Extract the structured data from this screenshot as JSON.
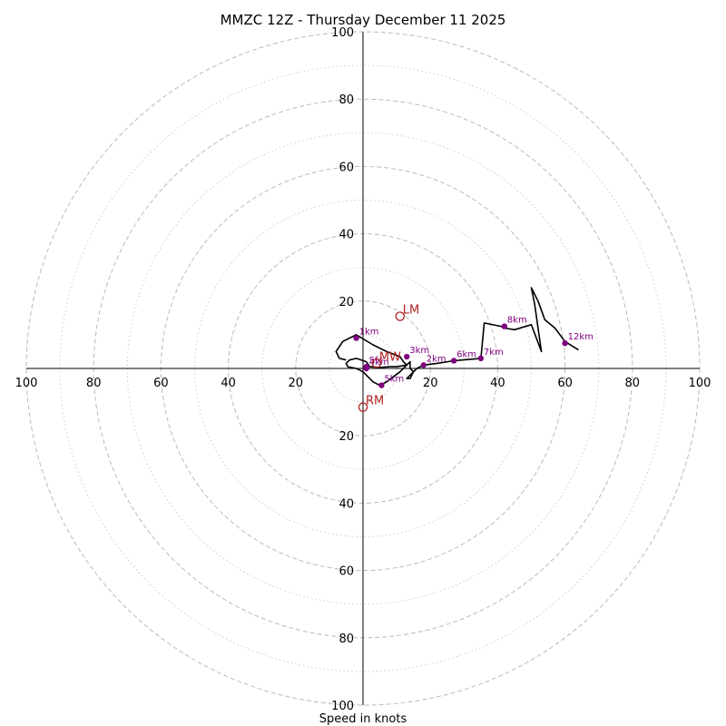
{
  "chart_data": {
    "type": "hodograph",
    "title": "MMZC 12Z - Thursday December 11 2025",
    "xlabel": "Speed in knots",
    "ring_values": [
      20,
      40,
      60,
      80,
      100
    ],
    "minor_ring_values": [
      10,
      30,
      50,
      70,
      90
    ],
    "max_range": 100,
    "tick_labels": {
      "top": [
        "20",
        "40",
        "60",
        "80",
        "100"
      ],
      "bottom": [
        "20",
        "40",
        "60",
        "80",
        "100"
      ],
      "left": [
        "20",
        "40",
        "60",
        "80",
        "100"
      ],
      "right": [
        "20",
        "40",
        "60",
        "80",
        "100"
      ]
    },
    "colors": {
      "trace": "#000000",
      "height_marker": "#800080",
      "motion_marker": "#b22222",
      "major_ring": "#bbbbbb",
      "minor_ring": "#cccccc"
    },
    "trace_uv": [
      [
        1,
        2
      ],
      [
        -2,
        3
      ],
      [
        -4,
        2.5
      ],
      [
        -5,
        1.5
      ],
      [
        -4.5,
        0.5
      ],
      [
        -2,
        0
      ],
      [
        0,
        -1
      ],
      [
        3,
        -4
      ],
      [
        5,
        -5
      ],
      [
        7,
        -4
      ],
      [
        11,
        -1
      ],
      [
        14,
        2
      ],
      [
        14,
        0
      ],
      [
        15,
        -1
      ],
      [
        14,
        -3
      ],
      [
        13,
        -3
      ],
      [
        14,
        -2
      ],
      [
        16,
        0
      ],
      [
        18,
        1
      ],
      [
        22,
        1.5
      ],
      [
        27,
        2.3
      ],
      [
        35,
        3
      ],
      [
        36,
        13.5
      ],
      [
        41,
        12.5
      ],
      [
        42,
        12
      ],
      [
        45,
        11.5
      ],
      [
        50,
        13
      ],
      [
        53,
        5
      ],
      [
        52,
        12
      ],
      [
        51,
        19
      ],
      [
        50,
        24
      ],
      [
        52,
        20
      ],
      [
        54,
        14.5
      ],
      [
        57,
        12
      ],
      [
        60,
        8
      ],
      [
        64,
        5.5
      ]
    ],
    "trace_lower_uv": [
      [
        -5,
        2.5
      ],
      [
        -7,
        3
      ],
      [
        -8,
        5
      ],
      [
        -6,
        8
      ],
      [
        -2,
        10
      ],
      [
        3,
        7
      ],
      [
        7,
        5
      ],
      [
        11,
        3.5
      ],
      [
        12,
        2
      ],
      [
        13,
        1
      ],
      [
        10,
        0.5
      ],
      [
        8,
        0.5
      ],
      [
        5,
        0.3
      ],
      [
        2,
        0.5
      ],
      [
        1,
        2
      ]
    ],
    "height_points": [
      {
        "label": "Sfc",
        "u": 1,
        "v": 0.5
      },
      {
        "label": "1km",
        "u": -2,
        "v": 9
      },
      {
        "label": "2km",
        "u": 18,
        "v": 1
      },
      {
        "label": "3km",
        "u": 13,
        "v": 3.5
      },
      {
        "label": "4km",
        "u": 1,
        "v": 0
      },
      {
        "label": "5km",
        "u": 5.5,
        "v": -5
      },
      {
        "label": "6km",
        "u": 27,
        "v": 2.3
      },
      {
        "label": "7km",
        "u": 35,
        "v": 3
      },
      {
        "label": "8km",
        "u": 42,
        "v": 12.5
      },
      {
        "label": "12km",
        "u": 60,
        "v": 7.5
      }
    ],
    "motion_points": [
      {
        "label": "LM",
        "u": 11,
        "v": 15.5
      },
      {
        "label": "MW",
        "u": 4,
        "v": 1.5
      },
      {
        "label": "RM",
        "u": 0,
        "v": -11.5
      }
    ]
  }
}
